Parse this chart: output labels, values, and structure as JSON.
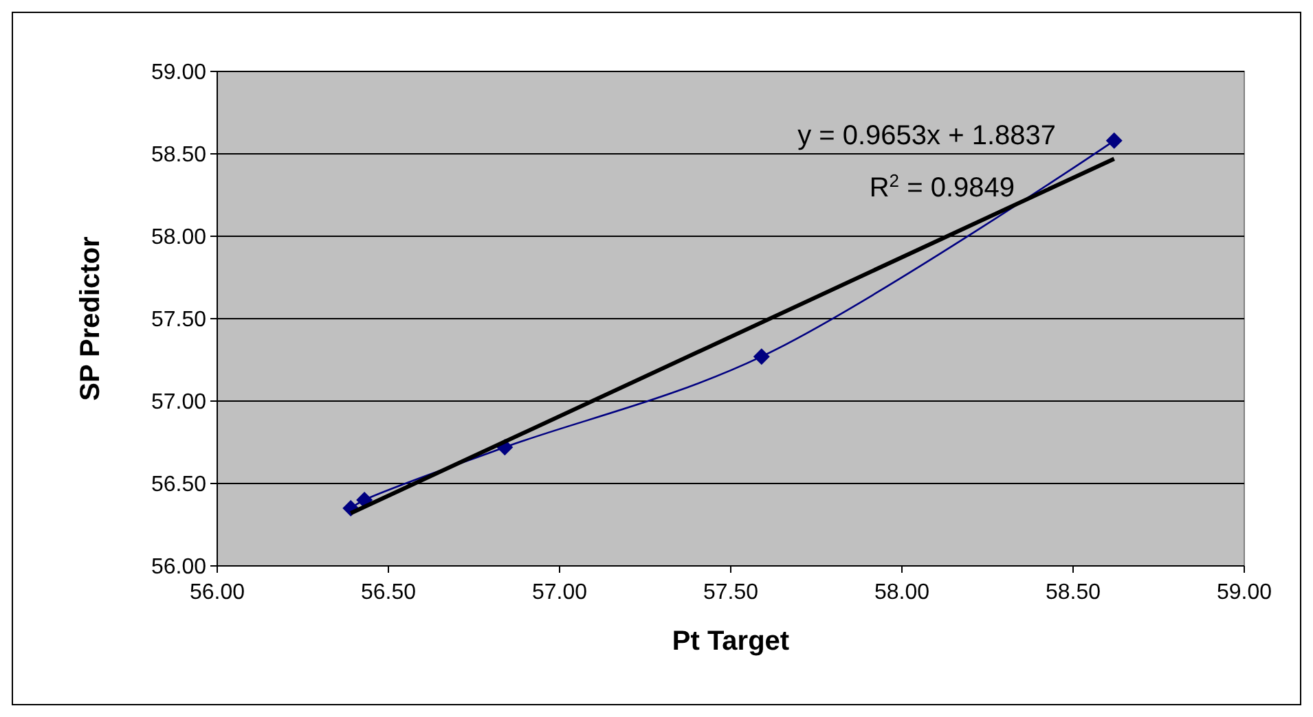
{
  "chart_data": {
    "type": "line",
    "xlabel": "Pt Target",
    "ylabel": "SP Predictor",
    "xlim": [
      56,
      59
    ],
    "ylim": [
      56,
      59
    ],
    "xticks": [
      {
        "value": 56,
        "label": "56.00"
      },
      {
        "value": 56.5,
        "label": "56.50"
      },
      {
        "value": 57,
        "label": "57.00"
      },
      {
        "value": 57.5,
        "label": "57.50"
      },
      {
        "value": 58,
        "label": "58.00"
      },
      {
        "value": 58.5,
        "label": "58.50"
      },
      {
        "value": 59,
        "label": "59.00"
      }
    ],
    "yticks": [
      {
        "value": 56,
        "label": "56.00"
      },
      {
        "value": 56.5,
        "label": "56.50"
      },
      {
        "value": 57,
        "label": "57.00"
      },
      {
        "value": 57.5,
        "label": "57.50"
      },
      {
        "value": 58,
        "label": "58.00"
      },
      {
        "value": 58.5,
        "label": "58.50"
      },
      {
        "value": 59,
        "label": "59.00"
      }
    ],
    "grid": "y",
    "series": [
      {
        "color": "#000080",
        "marker": "diamond",
        "x": [
          56.39,
          56.43,
          56.84,
          57.59,
          58.62
        ],
        "values": [
          56.35,
          56.4,
          56.72,
          57.27,
          58.58
        ]
      },
      {
        "color": "#000000",
        "marker": "none",
        "x": [
          56.39,
          58.62
        ],
        "values": [
          56.32,
          58.47
        ]
      }
    ],
    "annotations": [
      "y = 0.9653x + 1.8837",
      "R$^{2}$ = 0.9849"
    ]
  }
}
